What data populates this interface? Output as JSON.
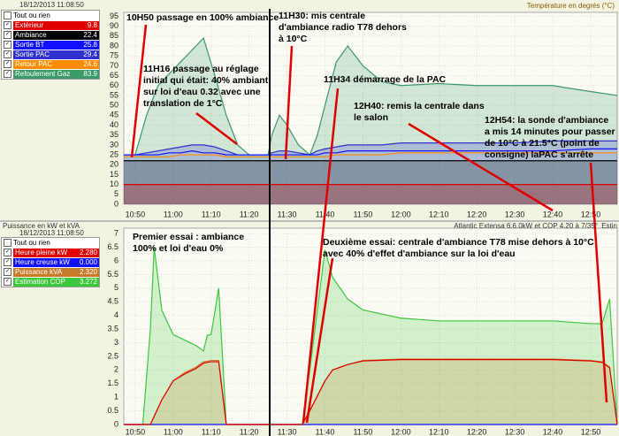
{
  "chart_data": [
    {
      "type": "line",
      "title": "Température en degrés (°C)",
      "date": "18/12/2013 11:08:50",
      "legend_header": "Tout ou rien",
      "x": [
        647,
        650,
        653,
        656,
        659,
        662,
        665,
        668,
        671,
        674,
        677,
        680,
        685,
        686,
        688,
        690,
        693,
        696,
        698,
        700,
        703,
        706,
        710,
        715,
        720,
        730,
        740,
        750,
        760,
        770,
        777
      ],
      "xlim": [
        647,
        777
      ],
      "xticks": [
        {
          "value": 650,
          "label": "10:50"
        },
        {
          "value": 660,
          "label": "11:00"
        },
        {
          "value": 670,
          "label": "11:10"
        },
        {
          "value": 680,
          "label": "11:20"
        },
        {
          "value": 690,
          "label": "11:30"
        },
        {
          "value": 700,
          "label": "11:40"
        },
        {
          "value": 710,
          "label": "11:50"
        },
        {
          "value": 720,
          "label": "12:00"
        },
        {
          "value": 730,
          "label": "12:10"
        },
        {
          "value": 740,
          "label": "12:20"
        },
        {
          "value": 750,
          "label": "12:30"
        },
        {
          "value": 760,
          "label": "12:40"
        },
        {
          "value": 770,
          "label": "12:50"
        }
      ],
      "ylim": [
        0,
        97
      ],
      "yticks": [
        0,
        5,
        10,
        15,
        20,
        25,
        30,
        35,
        40,
        45,
        50,
        55,
        60,
        65,
        70,
        75,
        80,
        85,
        90,
        95
      ],
      "grid": true,
      "series": [
        {
          "name": "Extérieur",
          "legend_value": "9.8",
          "color": "#e00000",
          "fill": true,
          "values": [
            10,
            10,
            10,
            10,
            10,
            10,
            10,
            10,
            10,
            10,
            10,
            10,
            10,
            10,
            10,
            10,
            10,
            10,
            10,
            10,
            10,
            10,
            10,
            10,
            10,
            10,
            10,
            10,
            10,
            10,
            10
          ]
        },
        {
          "name": "Ambiance",
          "legend_value": "22.4",
          "color": "#000000",
          "fill": true,
          "values": [
            22,
            22,
            22,
            22,
            22,
            22,
            22,
            22,
            22,
            22,
            22,
            22,
            22,
            22,
            22,
            22,
            22,
            22,
            22,
            22,
            22,
            22,
            22,
            22,
            22,
            22,
            22,
            22,
            22,
            22,
            22
          ]
        },
        {
          "name": "Sortie BT",
          "legend_value": "25.8",
          "color": "#1010ff",
          "fill": false,
          "values": [
            25,
            25,
            25,
            25,
            26,
            26,
            27,
            26,
            26,
            25,
            25,
            25,
            25,
            25,
            25,
            25,
            25,
            25,
            25,
            26,
            26,
            27,
            27,
            27,
            27,
            27,
            27,
            27,
            27,
            28,
            28
          ]
        },
        {
          "name": "Sortie PAC",
          "legend_value": "29.4",
          "color": "#3030d0",
          "fill": true,
          "values": [
            25,
            25,
            26,
            27,
            28,
            29,
            30,
            30,
            29,
            27,
            25,
            25,
            25,
            26,
            27,
            27,
            26,
            25,
            27,
            28,
            29,
            30,
            30,
            30,
            31,
            31,
            31,
            31,
            32,
            32,
            32
          ]
        },
        {
          "name": "Retour PAC",
          "legend_value": "24.6",
          "color": "#ff8c00",
          "fill": false,
          "values": [
            24,
            24,
            24,
            24,
            24,
            25,
            25,
            25,
            25,
            24,
            24,
            24,
            24,
            24,
            24,
            24,
            24,
            24,
            24,
            24,
            25,
            25,
            25,
            25,
            26,
            26,
            26,
            26,
            26,
            26,
            26
          ]
        },
        {
          "name": "Refoulement Gaz",
          "legend_value": "83.9",
          "color": "#3a9a6a",
          "fill": true,
          "values": [
            25,
            25,
            45,
            60,
            66,
            72,
            78,
            84,
            65,
            45,
            30,
            25,
            25,
            35,
            45,
            40,
            30,
            25,
            35,
            50,
            72,
            80,
            70,
            62,
            60,
            61,
            60,
            60,
            60,
            57,
            55
          ]
        }
      ],
      "annotations": [
        "10H50 passage en 100% ambiance",
        "11H16 passage au réglage initial qui était: 40% ambiant sur loi d'eau 0.32 avec une translation de 1°C",
        "11H30: mis centrale d'ambiance radio T78 dehors à 10°C",
        "11H34 démarrage de la PAC",
        "12H40: remis la centrale dans le salon",
        "12H54: la sonde d'ambiance a mis 14 minutes pour passer de 10°C à 21.5°C (point de consigne) laPAC s'arrête"
      ]
    },
    {
      "type": "line",
      "title": "Puissance en kW et kVA",
      "subtitle": "Atlantic Extensa 6.6.0kW et COP 4.20 à 7/35°",
      "note": "Estin",
      "date": "18/12/2013 11:08:50",
      "legend_header": "Tout ou rien",
      "x": [
        647,
        652,
        654,
        655,
        657,
        660,
        663,
        666,
        668,
        669,
        670,
        672,
        674,
        676,
        690,
        692,
        694,
        696,
        700,
        702,
        706,
        710,
        720,
        730,
        740,
        750,
        760,
        770,
        773,
        775,
        777
      ],
      "xlim": [
        647,
        777
      ],
      "xticks": [
        {
          "value": 650,
          "label": "10:50"
        },
        {
          "value": 660,
          "label": "11:00"
        },
        {
          "value": 670,
          "label": "11:10"
        },
        {
          "value": 680,
          "label": "11:20"
        },
        {
          "value": 690,
          "label": "11:30"
        },
        {
          "value": 700,
          "label": "11:40"
        },
        {
          "value": 710,
          "label": "11:50"
        },
        {
          "value": 720,
          "label": "12:00"
        },
        {
          "value": 730,
          "label": "12:10"
        },
        {
          "value": 740,
          "label": "12:20"
        },
        {
          "value": 750,
          "label": "12:30"
        },
        {
          "value": 760,
          "label": "12:40"
        },
        {
          "value": 770,
          "label": "12:50"
        }
      ],
      "ylim": [
        0,
        7.2
      ],
      "yticks": [
        0,
        0.5,
        1,
        1.5,
        2,
        2.5,
        3,
        3.5,
        4,
        4.5,
        5,
        5.5,
        6,
        6.5,
        7
      ],
      "grid": true,
      "series": [
        {
          "name": "Heure pleine kW",
          "legend_value": "2.280",
          "color": "#e00000",
          "fill": false,
          "values": [
            0,
            0,
            0,
            0.3,
            0.9,
            1.6,
            1.85,
            2.05,
            2.25,
            2.28,
            2.3,
            2.3,
            0,
            0,
            0,
            0,
            0,
            0.5,
            1.6,
            2,
            2.2,
            2.33,
            2.38,
            2.38,
            2.38,
            2.38,
            2.38,
            2.33,
            2.28,
            2.08,
            0
          ]
        },
        {
          "name": "Heure creuse kW",
          "legend_value": "0.000",
          "color": "#1010ff",
          "fill": false,
          "values": [
            0,
            0,
            0,
            0,
            0,
            0,
            0,
            0,
            0,
            0,
            0,
            0,
            0,
            0,
            0,
            0,
            0,
            0,
            0,
            0,
            0,
            0,
            0,
            0,
            0,
            0,
            0,
            0,
            0,
            0,
            0
          ]
        },
        {
          "name": "Puissance kVA",
          "legend_value": "2.320",
          "color": "#c87a28",
          "fill": true,
          "values": [
            0,
            0,
            0,
            0.3,
            0.9,
            1.6,
            1.9,
            2.1,
            2.3,
            2.32,
            2.35,
            2.35,
            0,
            0,
            0,
            0,
            0,
            0.5,
            1.6,
            2,
            2.2,
            2.35,
            2.4,
            2.4,
            2.4,
            2.4,
            2.4,
            2.35,
            2.3,
            2.1,
            0
          ]
        },
        {
          "name": "Estimation COP",
          "legend_value": "3.272",
          "color": "#3cc83c",
          "fill": true,
          "values": [
            0,
            0,
            3.5,
            6.5,
            4.2,
            3.3,
            3.1,
            2.9,
            2.7,
            3.27,
            3.3,
            5,
            0,
            0,
            0,
            0,
            0,
            2,
            6.4,
            5.4,
            4.6,
            4.2,
            3.9,
            3.8,
            3.8,
            3.8,
            3.8,
            3.7,
            3.7,
            4.6,
            0
          ]
        }
      ],
      "annotations": [
        "Premier essai : ambiance 100% et loi d'eau 0%",
        "Deuxième essai: centrale d'ambiance T78 mise dehors à 10°C avec 40% d'effet d'ambiance sur la loi d'eau"
      ]
    }
  ]
}
